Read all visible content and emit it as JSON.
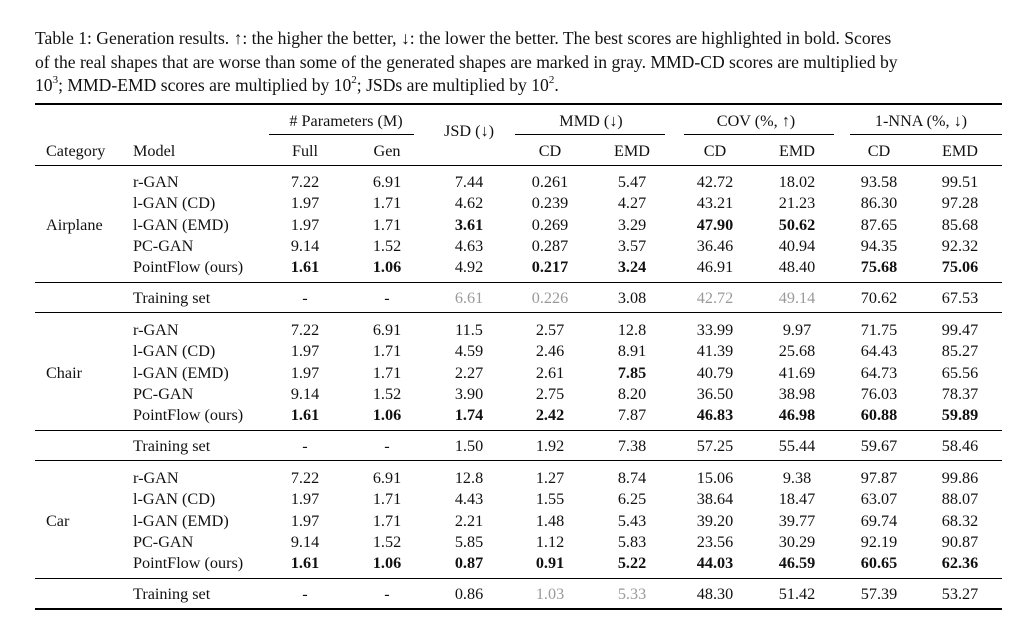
{
  "caption": {
    "line1": "Table 1: Generation results. ↑: the higher the better, ↓: the lower the better. The best scores are highlighted in bold. Scores",
    "line2": "of the real shapes that are worse than some of the generated shapes are marked in gray. MMD-CD scores are multiplied by",
    "line3_a": "10",
    "line3_sup1": "3",
    "line3_b": "; MMD-EMD scores are multiplied by 10",
    "line3_sup2": "2",
    "line3_c": "; JSDs are multiplied by 10",
    "line3_sup3": "2",
    "line3_d": "."
  },
  "headers": {
    "params_group": "# Parameters (M)",
    "jsd": "JSD (↓)",
    "mmd_group": "MMD (↓)",
    "cov_group": "COV (%, ↑)",
    "nna_group": "1-NNA (%, ↓)",
    "category": "Category",
    "model": "Model",
    "full": "Full",
    "gen": "Gen",
    "mmd_cd": "CD",
    "mmd_emd": "EMD",
    "cov_cd": "CD",
    "cov_emd": "EMD",
    "nna_cd": "CD",
    "nna_emd": "EMD"
  },
  "sections": [
    {
      "category": "Airplane",
      "rows": [
        {
          "model": "r-GAN",
          "full": "7.22",
          "gen": "6.91",
          "jsd": "7.44",
          "mmd_cd": "0.261",
          "mmd_emd": "5.47",
          "cov_cd": "42.72",
          "cov_emd": "18.02",
          "nna_cd": "93.58",
          "nna_emd": "99.51",
          "bold": [],
          "gray": []
        },
        {
          "model": "l-GAN (CD)",
          "full": "1.97",
          "gen": "1.71",
          "jsd": "4.62",
          "mmd_cd": "0.239",
          "mmd_emd": "4.27",
          "cov_cd": "43.21",
          "cov_emd": "21.23",
          "nna_cd": "86.30",
          "nna_emd": "97.28",
          "bold": [],
          "gray": []
        },
        {
          "model": "l-GAN (EMD)",
          "full": "1.97",
          "gen": "1.71",
          "jsd": "3.61",
          "mmd_cd": "0.269",
          "mmd_emd": "3.29",
          "cov_cd": "47.90",
          "cov_emd": "50.62",
          "nna_cd": "87.65",
          "nna_emd": "85.68",
          "bold": [
            "jsd",
            "cov_cd",
            "cov_emd"
          ],
          "gray": []
        },
        {
          "model": "PC-GAN",
          "full": "9.14",
          "gen": "1.52",
          "jsd": "4.63",
          "mmd_cd": "0.287",
          "mmd_emd": "3.57",
          "cov_cd": "36.46",
          "cov_emd": "40.94",
          "nna_cd": "94.35",
          "nna_emd": "92.32",
          "bold": [],
          "gray": []
        },
        {
          "model": "PointFlow (ours)",
          "full": "1.61",
          "gen": "1.06",
          "jsd": "4.92",
          "mmd_cd": "0.217",
          "mmd_emd": "3.24",
          "cov_cd": "46.91",
          "cov_emd": "48.40",
          "nna_cd": "75.68",
          "nna_emd": "75.06",
          "bold": [
            "full",
            "gen",
            "mmd_cd",
            "mmd_emd",
            "nna_cd",
            "nna_emd"
          ],
          "gray": []
        }
      ],
      "training": {
        "model": "Training set",
        "full": "-",
        "gen": "-",
        "jsd": "6.61",
        "mmd_cd": "0.226",
        "mmd_emd": "3.08",
        "cov_cd": "42.72",
        "cov_emd": "49.14",
        "nna_cd": "70.62",
        "nna_emd": "67.53",
        "bold": [],
        "gray": [
          "jsd",
          "mmd_cd",
          "cov_cd",
          "cov_emd"
        ]
      }
    },
    {
      "category": "Chair",
      "rows": [
        {
          "model": "r-GAN",
          "full": "7.22",
          "gen": "6.91",
          "jsd": "11.5",
          "mmd_cd": "2.57",
          "mmd_emd": "12.8",
          "cov_cd": "33.99",
          "cov_emd": "9.97",
          "nna_cd": "71.75",
          "nna_emd": "99.47",
          "bold": [],
          "gray": []
        },
        {
          "model": "l-GAN (CD)",
          "full": "1.97",
          "gen": "1.71",
          "jsd": "4.59",
          "mmd_cd": "2.46",
          "mmd_emd": "8.91",
          "cov_cd": "41.39",
          "cov_emd": "25.68",
          "nna_cd": "64.43",
          "nna_emd": "85.27",
          "bold": [],
          "gray": []
        },
        {
          "model": "l-GAN (EMD)",
          "full": "1.97",
          "gen": "1.71",
          "jsd": "2.27",
          "mmd_cd": "2.61",
          "mmd_emd": "7.85",
          "cov_cd": "40.79",
          "cov_emd": "41.69",
          "nna_cd": "64.73",
          "nna_emd": "65.56",
          "bold": [
            "mmd_emd"
          ],
          "gray": []
        },
        {
          "model": "PC-GAN",
          "full": "9.14",
          "gen": "1.52",
          "jsd": "3.90",
          "mmd_cd": "2.75",
          "mmd_emd": "8.20",
          "cov_cd": "36.50",
          "cov_emd": "38.98",
          "nna_cd": "76.03",
          "nna_emd": "78.37",
          "bold": [],
          "gray": []
        },
        {
          "model": "PointFlow (ours)",
          "full": "1.61",
          "gen": "1.06",
          "jsd": "1.74",
          "mmd_cd": "2.42",
          "mmd_emd": "7.87",
          "cov_cd": "46.83",
          "cov_emd": "46.98",
          "nna_cd": "60.88",
          "nna_emd": "59.89",
          "bold": [
            "full",
            "gen",
            "jsd",
            "mmd_cd",
            "cov_cd",
            "cov_emd",
            "nna_cd",
            "nna_emd"
          ],
          "gray": []
        }
      ],
      "training": {
        "model": "Training set",
        "full": "-",
        "gen": "-",
        "jsd": "1.50",
        "mmd_cd": "1.92",
        "mmd_emd": "7.38",
        "cov_cd": "57.25",
        "cov_emd": "55.44",
        "nna_cd": "59.67",
        "nna_emd": "58.46",
        "bold": [],
        "gray": []
      }
    },
    {
      "category": "Car",
      "rows": [
        {
          "model": "r-GAN",
          "full": "7.22",
          "gen": "6.91",
          "jsd": "12.8",
          "mmd_cd": "1.27",
          "mmd_emd": "8.74",
          "cov_cd": "15.06",
          "cov_emd": "9.38",
          "nna_cd": "97.87",
          "nna_emd": "99.86",
          "bold": [],
          "gray": []
        },
        {
          "model": "l-GAN (CD)",
          "full": "1.97",
          "gen": "1.71",
          "jsd": "4.43",
          "mmd_cd": "1.55",
          "mmd_emd": "6.25",
          "cov_cd": "38.64",
          "cov_emd": "18.47",
          "nna_cd": "63.07",
          "nna_emd": "88.07",
          "bold": [],
          "gray": []
        },
        {
          "model": "l-GAN (EMD)",
          "full": "1.97",
          "gen": "1.71",
          "jsd": "2.21",
          "mmd_cd": "1.48",
          "mmd_emd": "5.43",
          "cov_cd": "39.20",
          "cov_emd": "39.77",
          "nna_cd": "69.74",
          "nna_emd": "68.32",
          "bold": [],
          "gray": []
        },
        {
          "model": "PC-GAN",
          "full": "9.14",
          "gen": "1.52",
          "jsd": "5.85",
          "mmd_cd": "1.12",
          "mmd_emd": "5.83",
          "cov_cd": "23.56",
          "cov_emd": "30.29",
          "nna_cd": "92.19",
          "nna_emd": "90.87",
          "bold": [],
          "gray": []
        },
        {
          "model": "PointFlow (ours)",
          "full": "1.61",
          "gen": "1.06",
          "jsd": "0.87",
          "mmd_cd": "0.91",
          "mmd_emd": "5.22",
          "cov_cd": "44.03",
          "cov_emd": "46.59",
          "nna_cd": "60.65",
          "nna_emd": "62.36",
          "bold": [
            "full",
            "gen",
            "jsd",
            "mmd_cd",
            "mmd_emd",
            "cov_cd",
            "cov_emd",
            "nna_cd",
            "nna_emd"
          ],
          "gray": []
        }
      ],
      "training": {
        "model": "Training set",
        "full": "-",
        "gen": "-",
        "jsd": "0.86",
        "mmd_cd": "1.03",
        "mmd_emd": "5.33",
        "cov_cd": "48.30",
        "cov_emd": "51.42",
        "nna_cd": "57.39",
        "nna_emd": "53.27",
        "bold": [],
        "gray": [
          "mmd_cd",
          "mmd_emd"
        ]
      }
    }
  ]
}
